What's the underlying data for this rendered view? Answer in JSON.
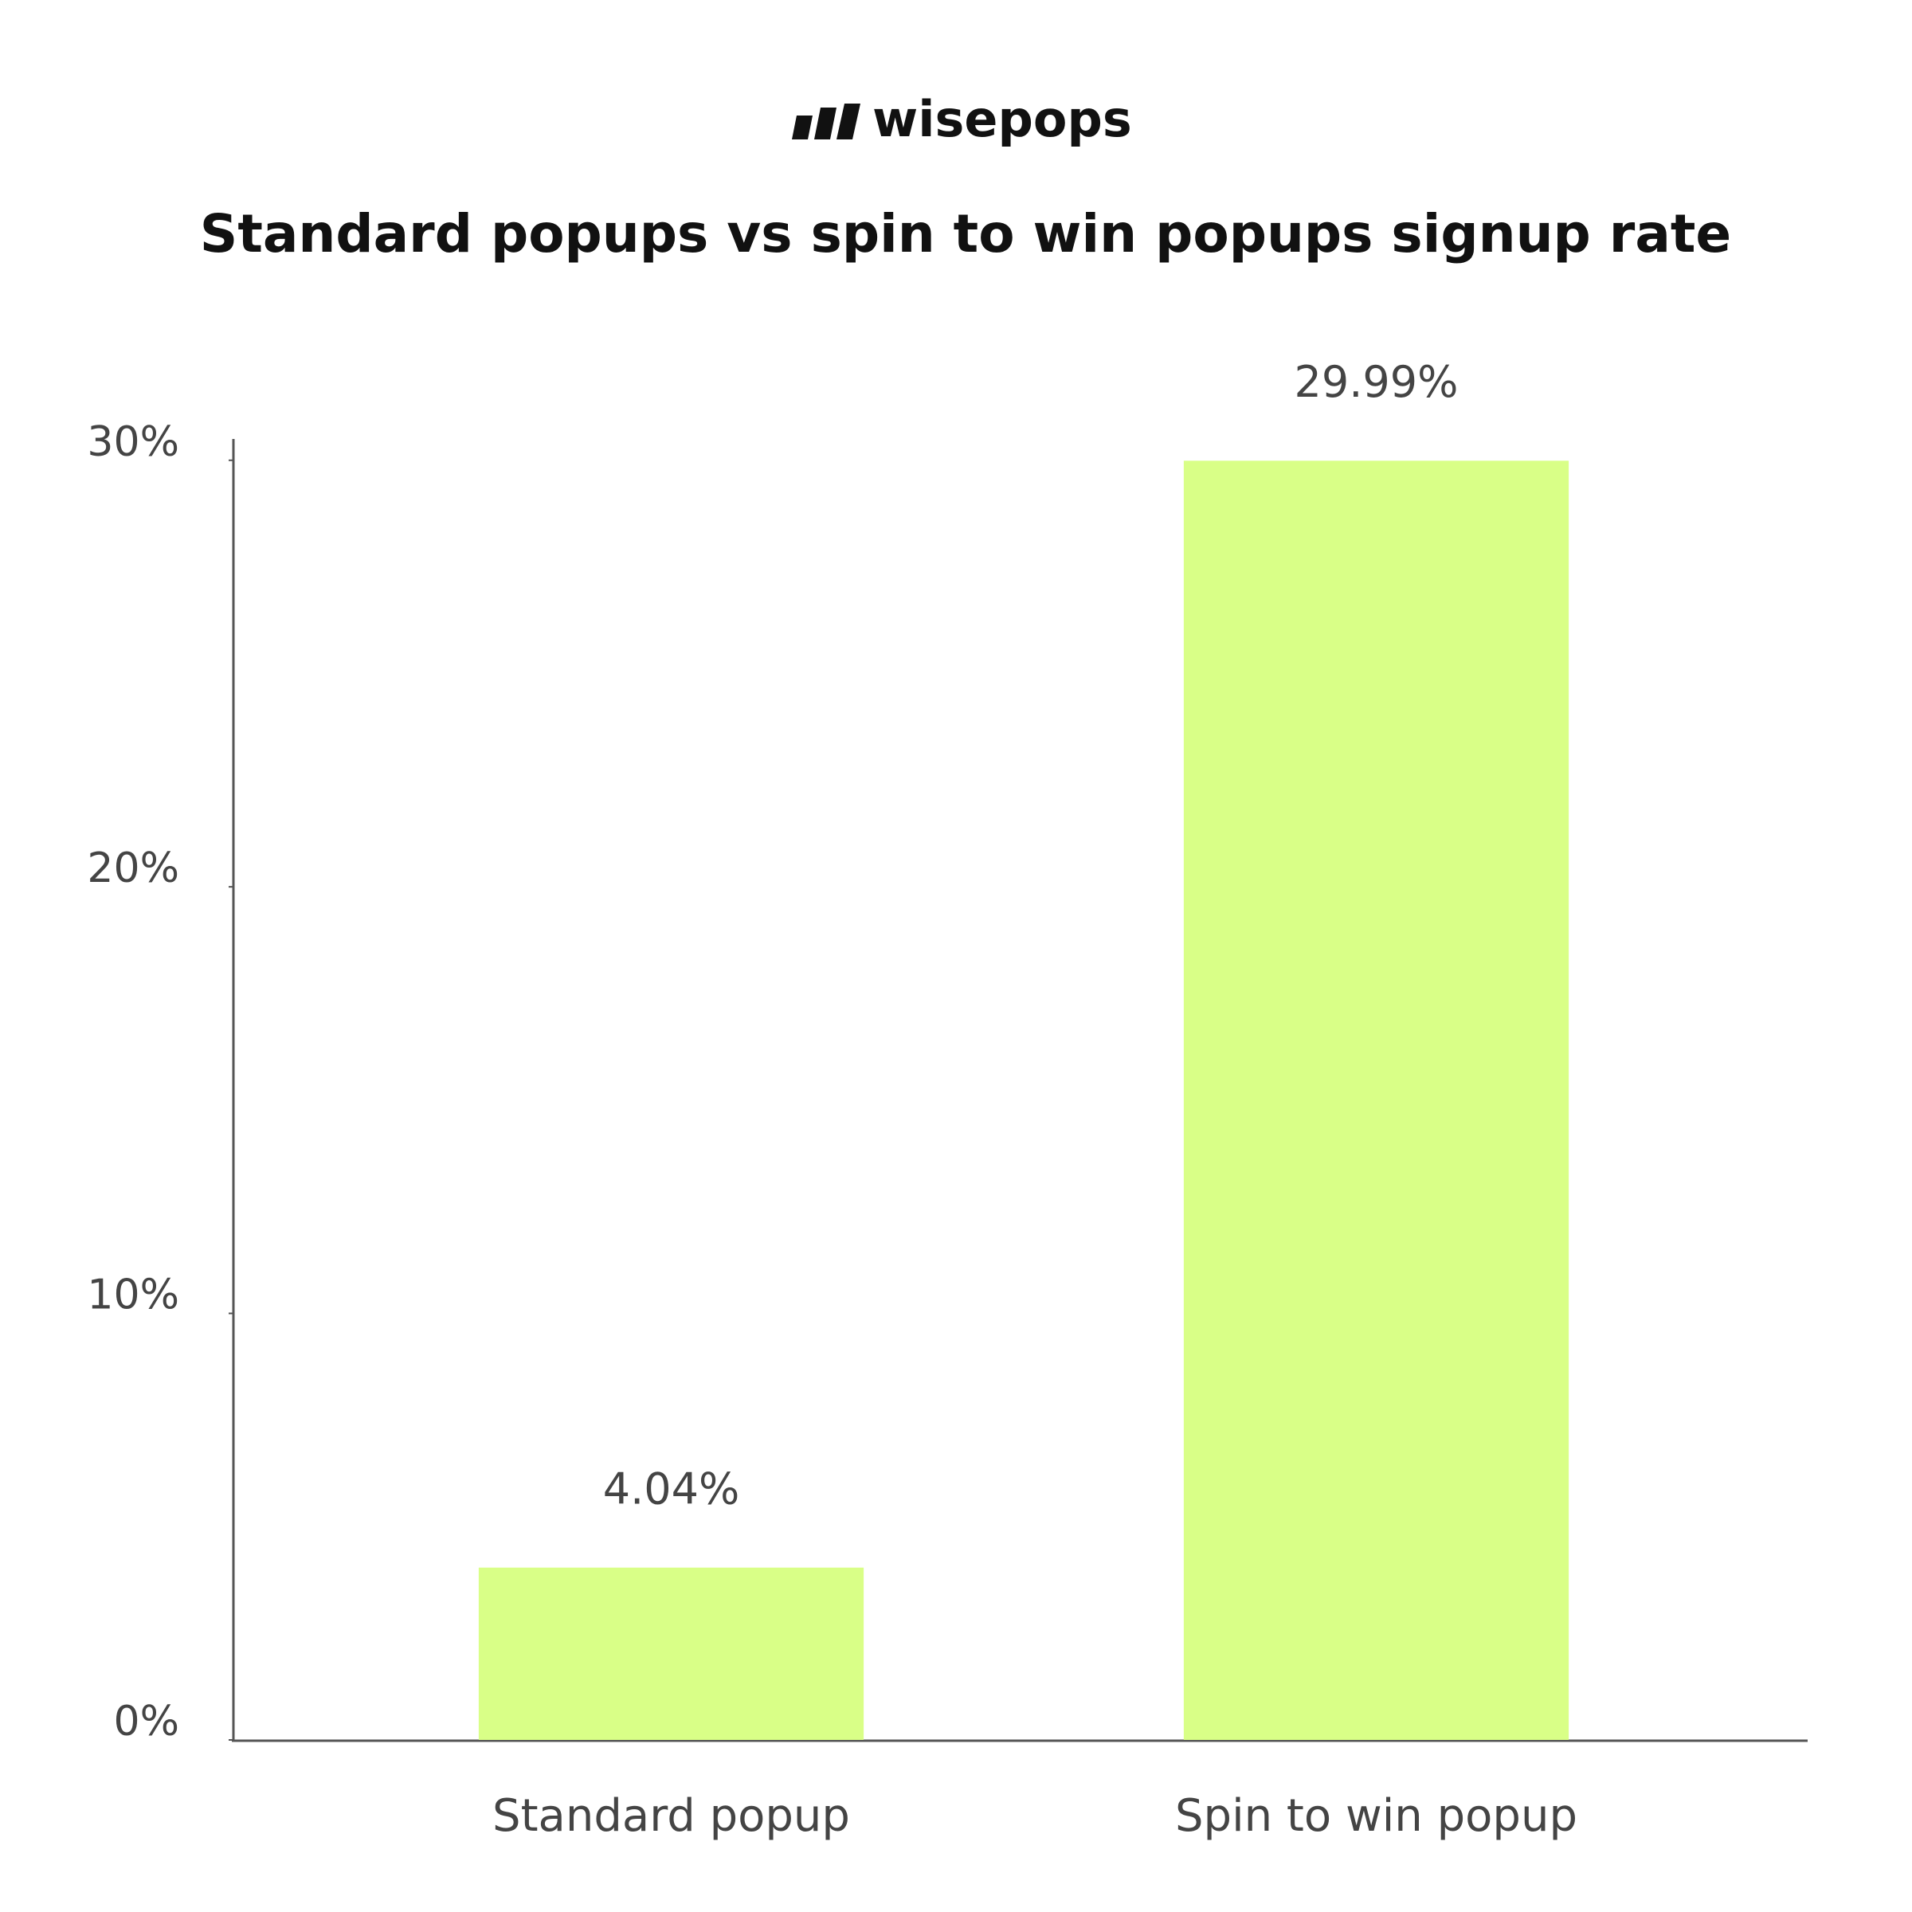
{
  "brand": "wisepops",
  "chart_data": {
    "type": "bar",
    "title": "Standard popups vs spin to win popups signup rate",
    "categories": [
      "Standard popup",
      "Spin to win popup"
    ],
    "values": [
      4.04,
      29.99
    ],
    "value_labels": [
      "4.04%",
      "29.99%"
    ],
    "color": "#d9ff87",
    "ylim": [
      0,
      30.5
    ],
    "yticks": [
      {
        "value": 0,
        "label": "0%"
      },
      {
        "value": 10,
        "label": "10%"
      },
      {
        "value": 20,
        "label": "20%"
      },
      {
        "value": 30,
        "label": "30%"
      }
    ],
    "grid": false
  }
}
